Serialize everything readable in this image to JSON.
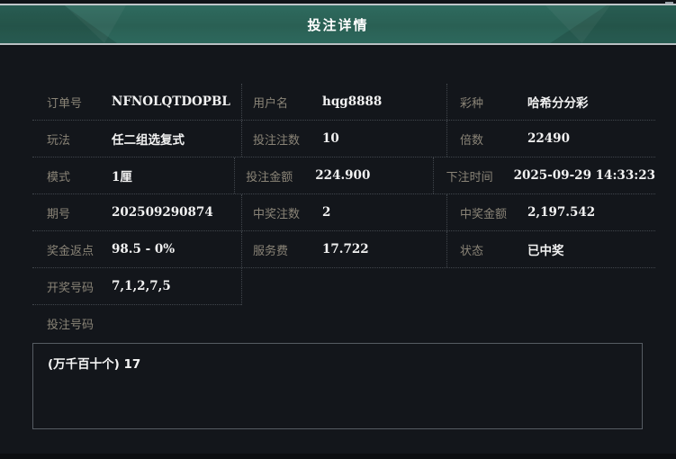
{
  "header": {
    "title": "投注详情"
  },
  "table": {
    "rows": [
      {
        "cells": [
          {
            "label": "订单号",
            "value": "NFNOLQTDOPBL"
          },
          {
            "label": "用户名",
            "value": "hqg8888"
          },
          {
            "label": "彩种",
            "value": "哈希分分彩"
          }
        ]
      },
      {
        "cells": [
          {
            "label": "玩法",
            "value": "任二组选复式"
          },
          {
            "label": "投注注数",
            "value": "10"
          },
          {
            "label": "倍数",
            "value": "22490"
          }
        ]
      },
      {
        "cells": [
          {
            "label": "模式",
            "value": "1厘"
          },
          {
            "label": "投注金额",
            "value": "224.900"
          },
          {
            "label": "下注时间",
            "value": "2025-09-29 14:33:23"
          }
        ]
      },
      {
        "cells": [
          {
            "label": "期号",
            "value": "202509290874"
          },
          {
            "label": "中奖注数",
            "value": "2"
          },
          {
            "label": "中奖金额",
            "value": "2,197.542"
          }
        ]
      },
      {
        "cells": [
          {
            "label": "奖金返点",
            "value": "98.5 - 0%"
          },
          {
            "label": "服务费",
            "value": "17.722"
          },
          {
            "label": "状态",
            "value": "已中奖"
          }
        ]
      },
      {
        "cells": [
          {
            "label": "开奖号码",
            "value": "7,1,2,7,5"
          }
        ]
      }
    ]
  },
  "bet_numbers": {
    "label": "投注号码",
    "content": "(万千百十个) 17"
  },
  "colors": {
    "header_teal": "#2b6257",
    "header_silver": "#bfc6c9",
    "background": "#13161b",
    "label_text": "#8a8477",
    "value_text": "#f2f2f2",
    "dotted_border": "#41464c",
    "box_border": "#565c63"
  }
}
